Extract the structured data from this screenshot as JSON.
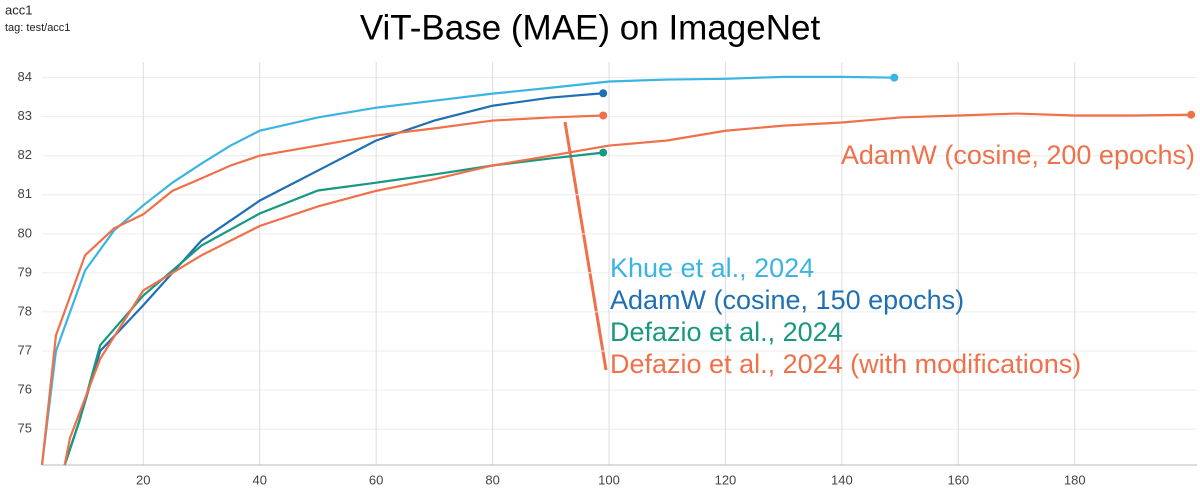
{
  "chart_data": {
    "type": "line",
    "title": "ViT-Base (MAE) on ImageNet",
    "header": "acc1",
    "subheader": "tag: test/acc1",
    "xlim": [
      2.6,
      201
    ],
    "ylim": [
      74.08,
      84.4
    ],
    "xticks": [
      20,
      40,
      60,
      80,
      100,
      120,
      140,
      160,
      180
    ],
    "yticks": [
      75,
      76,
      77,
      78,
      79,
      80,
      81,
      82,
      83,
      84
    ],
    "grid": true,
    "series": [
      {
        "name": "Khue et al., 2024",
        "color": "#3bb4e2",
        "x": [
          2.6,
          5,
          10,
          15,
          20,
          25,
          30,
          35,
          40,
          50,
          60,
          70,
          80,
          90,
          100,
          110,
          120,
          130,
          140,
          149
        ],
        "values": [
          74.08,
          77.0,
          79.06,
          80.09,
          80.73,
          81.31,
          81.8,
          82.26,
          82.64,
          82.98,
          83.23,
          83.41,
          83.59,
          83.74,
          83.9,
          83.95,
          83.97,
          84.02,
          84.02,
          84.0
        ]
      },
      {
        "name": "AdamW (cosine, 150 epochs)",
        "color": "#1f6fb2",
        "x": [
          6.5,
          9,
          12.6,
          20,
          30,
          40,
          50,
          60,
          70,
          80,
          90,
          99
        ],
        "values": [
          74.08,
          75.2,
          77.0,
          78.17,
          79.83,
          80.85,
          81.62,
          82.39,
          82.9,
          83.28,
          83.49,
          83.6
        ]
      },
      {
        "name": "Defazio et al., 2024",
        "color": "#179880",
        "x": [
          6.5,
          9,
          12.6,
          20,
          30,
          40,
          50,
          60,
          70,
          80,
          90,
          99
        ],
        "values": [
          74.08,
          75.2,
          77.15,
          78.42,
          79.7,
          80.52,
          81.11,
          81.31,
          81.52,
          81.75,
          81.93,
          82.08
        ]
      },
      {
        "name": "Defazio et al., 2024 (with modifications)",
        "color": "#f0704a",
        "x": [
          2.6,
          5,
          10,
          15,
          20,
          25,
          30,
          35,
          40,
          50,
          60,
          70,
          80,
          90,
          99
        ],
        "values": [
          74.08,
          77.4,
          79.45,
          80.14,
          80.5,
          81.1,
          81.42,
          81.75,
          82.0,
          82.26,
          82.52,
          82.7,
          82.9,
          82.98,
          83.03
        ]
      },
      {
        "name": "AdamW (cosine, 200 epochs)",
        "color": "#f0704a",
        "x": [
          6.5,
          7.4,
          12.6,
          20,
          30,
          40,
          50,
          60,
          70,
          80,
          90,
          100,
          110,
          120,
          130,
          140,
          150,
          160,
          170,
          180,
          190,
          200
        ],
        "values": [
          74.08,
          74.77,
          76.8,
          78.55,
          79.45,
          80.2,
          80.7,
          81.1,
          81.4,
          81.75,
          82.0,
          82.26,
          82.39,
          82.64,
          82.77,
          82.85,
          82.98,
          83.03,
          83.08,
          83.03,
          83.03,
          83.05
        ]
      }
    ]
  }
}
